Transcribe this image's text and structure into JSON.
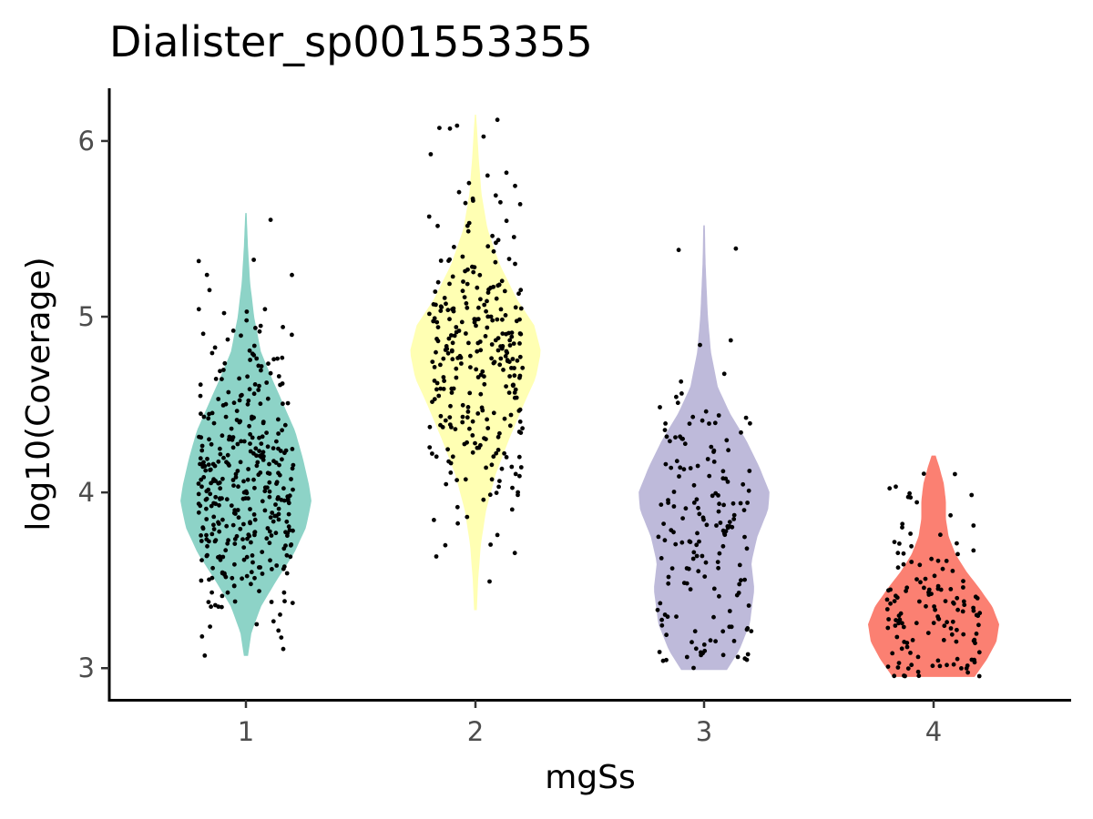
{
  "chart_data": {
    "type": "violin",
    "title": "Dialister_sp001553355",
    "xlabel": "mgSs",
    "ylabel": "log10(Coverage)",
    "categories": [
      "1",
      "2",
      "3",
      "4"
    ],
    "yticks": [
      "3",
      "4",
      "5",
      "6"
    ],
    "ylim": [
      2.82,
      6.3
    ],
    "grid": false,
    "legend": "none",
    "series": [
      {
        "category": "1",
        "color": "#8dd3c7",
        "range": [
          3.07,
          5.59
        ],
        "points_count": 380,
        "density": [
          [
            3.07,
            0.03
          ],
          [
            3.2,
            0.08
          ],
          [
            3.35,
            0.22
          ],
          [
            3.5,
            0.45
          ],
          [
            3.65,
            0.7
          ],
          [
            3.8,
            0.88
          ],
          [
            3.95,
            0.96
          ],
          [
            4.05,
            0.92
          ],
          [
            4.2,
            0.83
          ],
          [
            4.35,
            0.72
          ],
          [
            4.5,
            0.55
          ],
          [
            4.65,
            0.38
          ],
          [
            4.8,
            0.22
          ],
          [
            5.0,
            0.12
          ],
          [
            5.2,
            0.06
          ],
          [
            5.4,
            0.03
          ],
          [
            5.59,
            0.01
          ]
        ]
      },
      {
        "category": "2",
        "color": "#ffffb3",
        "range": [
          3.33,
          6.15
        ],
        "points_count": 300,
        "density": [
          [
            3.33,
            0.02
          ],
          [
            3.5,
            0.04
          ],
          [
            3.7,
            0.08
          ],
          [
            3.9,
            0.16
          ],
          [
            4.1,
            0.3
          ],
          [
            4.3,
            0.5
          ],
          [
            4.5,
            0.72
          ],
          [
            4.65,
            0.9
          ],
          [
            4.8,
            0.98
          ],
          [
            4.95,
            0.88
          ],
          [
            5.1,
            0.62
          ],
          [
            5.3,
            0.36
          ],
          [
            5.5,
            0.18
          ],
          [
            5.7,
            0.09
          ],
          [
            5.9,
            0.05
          ],
          [
            6.15,
            0.01
          ]
        ]
      },
      {
        "category": "3",
        "color": "#bebada",
        "range": [
          2.99,
          5.52
        ],
        "points_count": 170,
        "density": [
          [
            2.99,
            0.3
          ],
          [
            3.1,
            0.46
          ],
          [
            3.25,
            0.6
          ],
          [
            3.45,
            0.66
          ],
          [
            3.6,
            0.62
          ],
          [
            3.75,
            0.7
          ],
          [
            3.9,
            0.84
          ],
          [
            4.0,
            0.86
          ],
          [
            4.15,
            0.72
          ],
          [
            4.3,
            0.55
          ],
          [
            4.45,
            0.34
          ],
          [
            4.6,
            0.18
          ],
          [
            4.8,
            0.09
          ],
          [
            5.0,
            0.05
          ],
          [
            5.3,
            0.02
          ],
          [
            5.52,
            0.01
          ]
        ]
      },
      {
        "category": "4",
        "color": "#fb8072",
        "range": [
          2.95,
          4.21
        ],
        "points_count": 140,
        "density": [
          [
            2.95,
            0.6
          ],
          [
            3.05,
            0.78
          ],
          [
            3.15,
            0.92
          ],
          [
            3.25,
            0.96
          ],
          [
            3.35,
            0.86
          ],
          [
            3.45,
            0.68
          ],
          [
            3.55,
            0.48
          ],
          [
            3.65,
            0.32
          ],
          [
            3.75,
            0.22
          ],
          [
            3.85,
            0.18
          ],
          [
            3.95,
            0.18
          ],
          [
            4.05,
            0.15
          ],
          [
            4.15,
            0.08
          ],
          [
            4.21,
            0.03
          ]
        ]
      }
    ]
  }
}
